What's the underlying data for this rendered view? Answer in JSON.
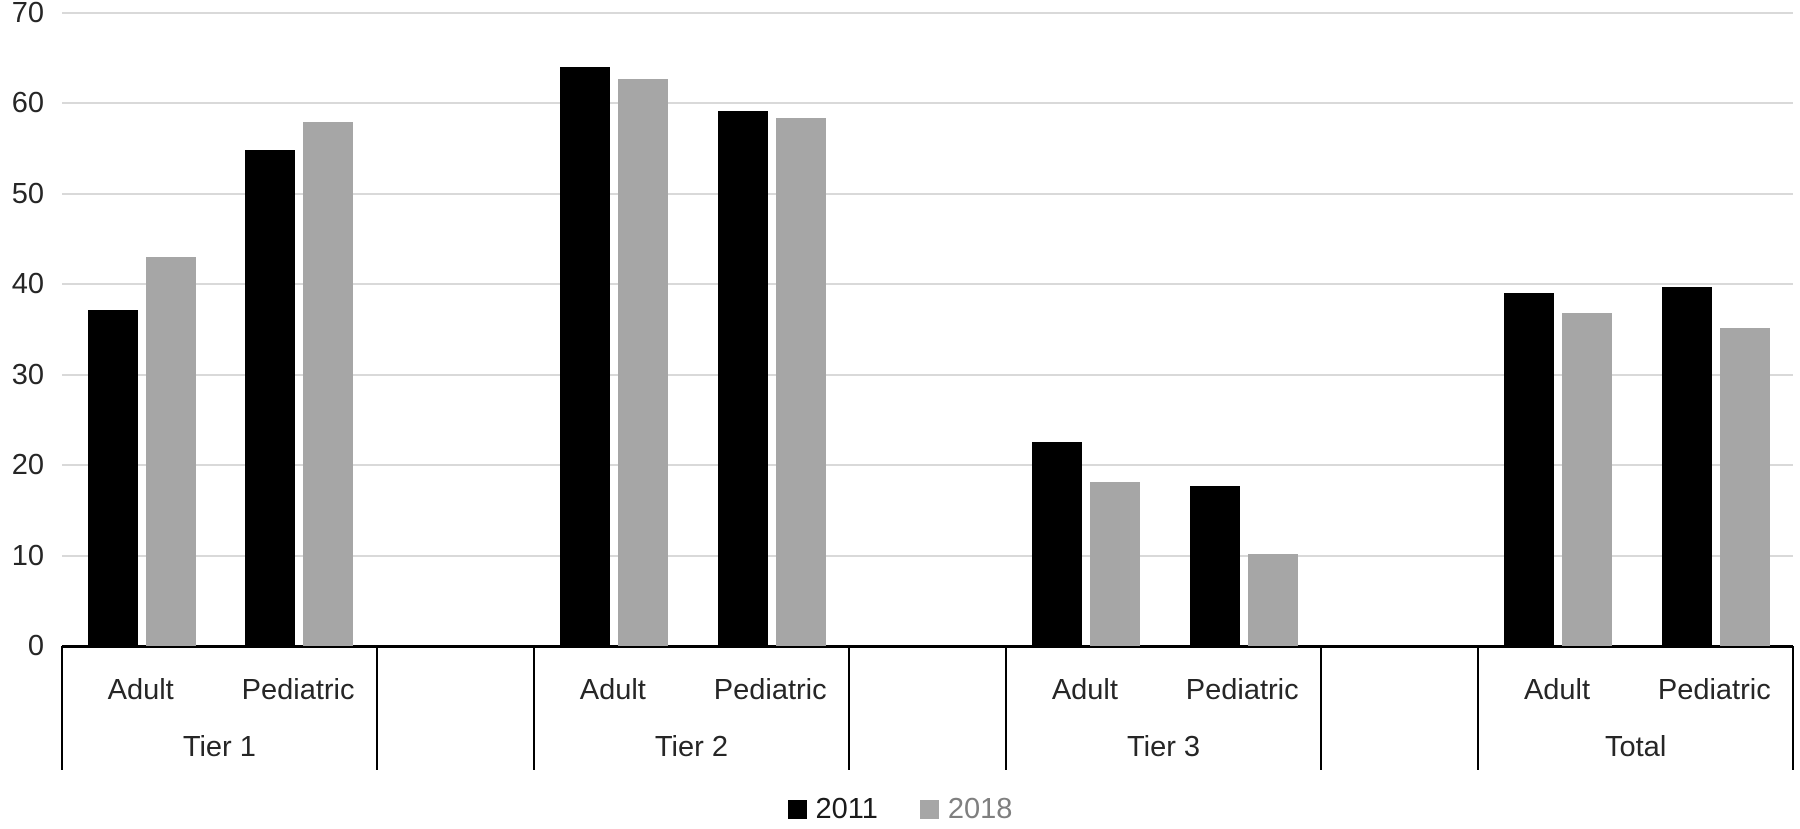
{
  "chart_data": {
    "type": "bar",
    "title": "",
    "y_axis": {
      "min": 0,
      "max": 70,
      "tick_interval": 10,
      "ticks": [
        0,
        10,
        20,
        30,
        40,
        50,
        60,
        70
      ]
    },
    "x_axis": {
      "group_row": [
        "Tier 1",
        "Tier 2",
        "Tier 3",
        "Total"
      ],
      "category_row": [
        "Adult",
        "Pediatric"
      ]
    },
    "groups": [
      {
        "label": "Tier 1",
        "items": [
          {
            "category": "Adult",
            "values": {
              "2011": 37.2,
              "2018": 43.0
            }
          },
          {
            "category": "Pediatric",
            "values": {
              "2011": 54.9,
              "2018": 57.9
            }
          }
        ]
      },
      {
        "label": "Tier 2",
        "items": [
          {
            "category": "Adult",
            "values": {
              "2011": 64.0,
              "2018": 62.7
            }
          },
          {
            "category": "Pediatric",
            "values": {
              "2011": 59.2,
              "2018": 58.4
            }
          }
        ]
      },
      {
        "label": "Tier 3",
        "items": [
          {
            "category": "Adult",
            "values": {
              "2011": 22.6,
              "2018": 18.1
            }
          },
          {
            "category": "Pediatric",
            "values": {
              "2011": 17.7,
              "2018": 10.2
            }
          }
        ]
      },
      {
        "label": "Total",
        "items": [
          {
            "category": "Adult",
            "values": {
              "2011": 39.0,
              "2018": 36.8
            }
          },
          {
            "category": "Pediatric",
            "values": {
              "2011": 39.7,
              "2018": 35.2
            }
          }
        ]
      }
    ],
    "series": [
      {
        "name": "2011",
        "color": "#000000",
        "label_color": "#1a1a1a"
      },
      {
        "name": "2018",
        "color": "#a6a6a6",
        "label_color": "#7f7f7f"
      }
    ],
    "legend": {
      "position": "bottom"
    },
    "grid": true,
    "colors": {
      "gridline": "#d9d9d9",
      "axis": "#000000",
      "text": "#262626",
      "background": "#ffffff"
    }
  }
}
